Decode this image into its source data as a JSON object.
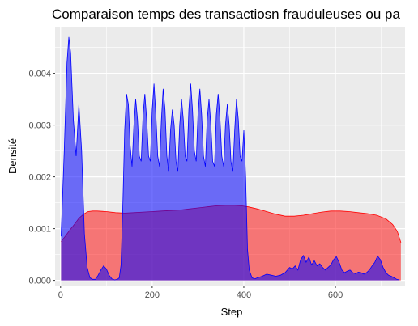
{
  "chart_data": {
    "type": "area",
    "title": "Comparaison temps des transactiosn frauduleuses ou pa",
    "xlabel": "Step",
    "ylabel": "Densité",
    "xlim": [
      -12,
      752
    ],
    "ylim": [
      -0.0001,
      0.0049
    ],
    "x_ticks": [
      0,
      200,
      400,
      600
    ],
    "x_tick_labels": [
      "0",
      "200",
      "400",
      "600"
    ],
    "y_ticks": [
      0,
      0.001,
      0.002,
      0.003,
      0.004
    ],
    "y_tick_labels": [
      "0.000",
      "0.001",
      "0.002",
      "0.003",
      "0.004"
    ],
    "grid": true,
    "legend": "none",
    "series": [
      {
        "color": "#ff0000",
        "opacity": 0.5,
        "x": [
          1,
          10,
          20,
          30,
          40,
          50,
          60,
          70,
          80,
          100,
          120,
          140,
          160,
          180,
          200,
          220,
          240,
          260,
          280,
          300,
          320,
          340,
          360,
          380,
          395,
          410,
          430,
          450,
          470,
          490,
          510,
          530,
          550,
          570,
          590,
          610,
          630,
          650,
          670,
          690,
          710,
          725,
          735,
          743
        ],
        "y": [
          0.00075,
          0.00085,
          0.00097,
          0.00108,
          0.0012,
          0.00128,
          0.00133,
          0.00134,
          0.00134,
          0.00133,
          0.00131,
          0.0013,
          0.00131,
          0.00132,
          0.00133,
          0.00134,
          0.00135,
          0.00136,
          0.00138,
          0.0014,
          0.00142,
          0.00144,
          0.00145,
          0.00145,
          0.00144,
          0.00142,
          0.00138,
          0.00133,
          0.00128,
          0.00124,
          0.00124,
          0.00126,
          0.00129,
          0.00132,
          0.00134,
          0.00134,
          0.00133,
          0.00131,
          0.00129,
          0.00126,
          0.00119,
          0.00108,
          0.00095,
          0.00073
        ]
      },
      {
        "color": "#0000ff",
        "opacity": 0.55,
        "x": [
          1,
          8,
          14,
          18,
          22,
          28,
          34,
          40,
          46,
          52,
          58,
          64,
          70,
          76,
          82,
          88,
          94,
          100,
          106,
          112,
          118,
          124,
          128,
          132,
          136,
          140,
          144,
          148,
          152,
          156,
          160,
          164,
          168,
          172,
          176,
          180,
          184,
          188,
          192,
          196,
          200,
          204,
          208,
          212,
          216,
          220,
          224,
          228,
          232,
          236,
          240,
          244,
          248,
          252,
          256,
          260,
          264,
          268,
          272,
          276,
          280,
          284,
          288,
          292,
          296,
          300,
          304,
          308,
          312,
          316,
          320,
          324,
          328,
          332,
          336,
          340,
          344,
          348,
          352,
          356,
          360,
          364,
          368,
          372,
          376,
          380,
          384,
          388,
          392,
          396,
          400,
          404,
          408,
          412,
          418,
          424,
          430,
          440,
          450,
          460,
          470,
          480,
          490,
          500,
          506,
          512,
          518,
          524,
          530,
          536,
          542,
          548,
          554,
          560,
          566,
          572,
          578,
          584,
          590,
          596,
          602,
          608,
          614,
          620,
          626,
          632,
          638,
          644,
          650,
          656,
          662,
          668,
          674,
          680,
          686,
          692,
          698,
          704,
          710,
          716,
          722,
          728,
          734,
          740
        ],
        "y": [
          0.00085,
          0.0025,
          0.0042,
          0.0047,
          0.0044,
          0.0031,
          0.0024,
          0.0034,
          0.0025,
          0.0009,
          0.00025,
          5e-05,
          2e-05,
          2e-05,
          0.0001,
          0.0002,
          0.00028,
          0.00022,
          0.0001,
          3e-05,
          1e-05,
          2e-05,
          5e-05,
          0.0003,
          0.0015,
          0.0029,
          0.0036,
          0.0034,
          0.0026,
          0.0022,
          0.003,
          0.0035,
          0.0031,
          0.0024,
          0.0023,
          0.0032,
          0.0036,
          0.0031,
          0.0024,
          0.0023,
          0.0033,
          0.0038,
          0.0032,
          0.0024,
          0.0022,
          0.0031,
          0.0037,
          0.0033,
          0.0024,
          0.0021,
          0.0029,
          0.0033,
          0.003,
          0.0023,
          0.0021,
          0.003,
          0.0035,
          0.0031,
          0.0024,
          0.0023,
          0.0033,
          0.0038,
          0.0033,
          0.0025,
          0.0023,
          0.0032,
          0.0037,
          0.0032,
          0.0024,
          0.0022,
          0.0031,
          0.0035,
          0.003,
          0.0023,
          0.0022,
          0.0032,
          0.0036,
          0.0031,
          0.0024,
          0.0022,
          0.003,
          0.0034,
          0.003,
          0.0023,
          0.0021,
          0.0029,
          0.0035,
          0.0031,
          0.0024,
          0.0023,
          0.0029,
          0.002,
          0.0006,
          0.0002,
          5e-05,
          3e-05,
          5e-05,
          8e-05,
          0.00012,
          0.0001,
          8e-05,
          0.0001,
          0.00015,
          0.00025,
          0.00022,
          0.00028,
          0.0002,
          0.0004,
          0.00048,
          0.00035,
          0.00045,
          0.0003,
          0.00038,
          0.00028,
          0.00032,
          0.00025,
          0.0002,
          0.00025,
          0.0003,
          0.0004,
          0.00046,
          0.00035,
          0.0002,
          0.00015,
          0.00018,
          0.0002,
          0.00015,
          0.00013,
          0.00016,
          0.00015,
          0.00012,
          0.00015,
          0.0002,
          0.00028,
          0.00035,
          0.00047,
          0.0004,
          0.00025,
          0.00015,
          0.0001,
          8e-05,
          5e-05,
          2e-05,
          1e-05
        ]
      }
    ]
  },
  "style": {
    "panel_bg": "#ebebeb",
    "grid_major": "#ffffff",
    "tick_text": "#4d4d4d",
    "tick_mark": "#333333"
  }
}
